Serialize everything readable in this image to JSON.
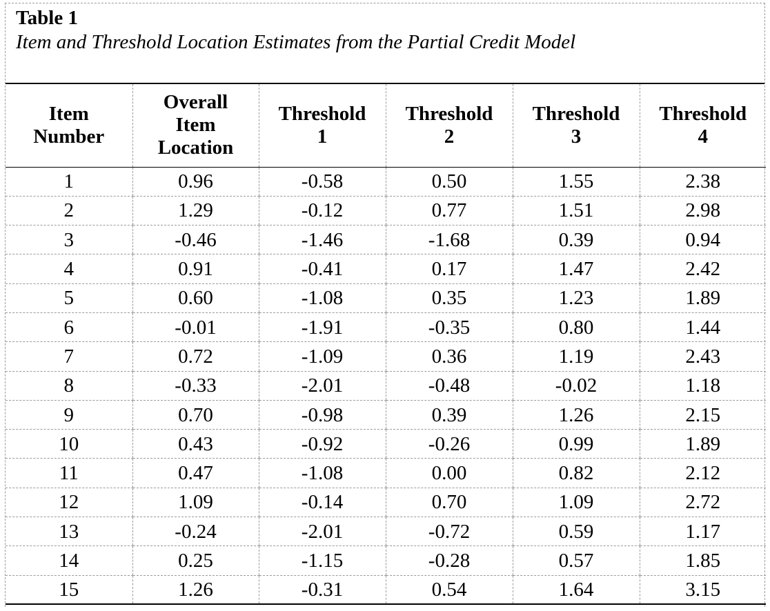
{
  "caption": {
    "label": "Table 1",
    "title": "Item and Threshold Location Estimates from the Partial Credit Model"
  },
  "table": {
    "headers": [
      [
        "Item",
        "Number"
      ],
      [
        "Overall",
        "Item",
        "Location"
      ],
      [
        "Threshold",
        "1"
      ],
      [
        "Threshold",
        "2"
      ],
      [
        "Threshold",
        "3"
      ],
      [
        "Threshold",
        "4"
      ]
    ],
    "rows": [
      [
        "1",
        "0.96",
        "-0.58",
        "0.50",
        "1.55",
        "2.38"
      ],
      [
        "2",
        "1.29",
        "-0.12",
        "0.77",
        "1.51",
        "2.98"
      ],
      [
        "3",
        "-0.46",
        "-1.46",
        "-1.68",
        "0.39",
        "0.94"
      ],
      [
        "4",
        "0.91",
        "-0.41",
        "0.17",
        "1.47",
        "2.42"
      ],
      [
        "5",
        "0.60",
        "-1.08",
        "0.35",
        "1.23",
        "1.89"
      ],
      [
        "6",
        "-0.01",
        "-1.91",
        "-0.35",
        "0.80",
        "1.44"
      ],
      [
        "7",
        "0.72",
        "-1.09",
        "0.36",
        "1.19",
        "2.43"
      ],
      [
        "8",
        "-0.33",
        "-2.01",
        "-0.48",
        "-0.02",
        "1.18"
      ],
      [
        "9",
        "0.70",
        "-0.98",
        "0.39",
        "1.26",
        "2.15"
      ],
      [
        "10",
        "0.43",
        "-0.92",
        "-0.26",
        "0.99",
        "1.89"
      ],
      [
        "11",
        "0.47",
        "-1.08",
        "0.00",
        "0.82",
        "2.12"
      ],
      [
        "12",
        "1.09",
        "-0.14",
        "0.70",
        "1.09",
        "2.72"
      ],
      [
        "13",
        "-0.24",
        "-2.01",
        "-0.72",
        "0.59",
        "1.17"
      ],
      [
        "14",
        "0.25",
        "-1.15",
        "-0.28",
        "0.57",
        "1.85"
      ],
      [
        "15",
        "1.26",
        "-0.31",
        "0.54",
        "1.64",
        "3.15"
      ]
    ]
  }
}
